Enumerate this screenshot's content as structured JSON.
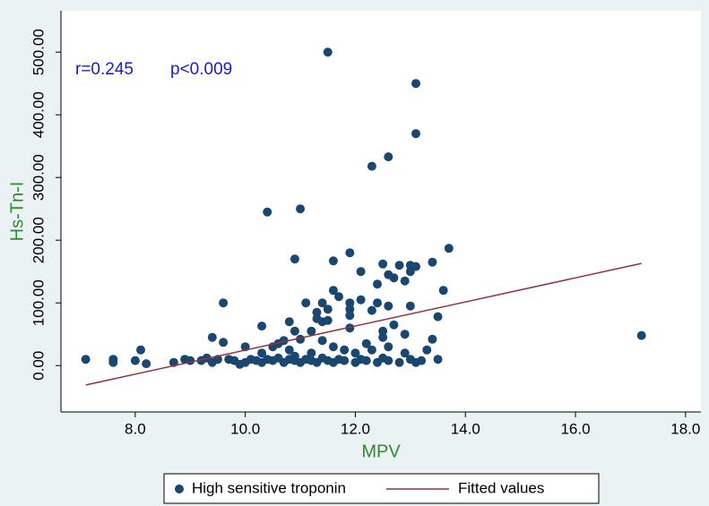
{
  "chart_data": {
    "type": "scatter",
    "annotations": [
      "r=0.245",
      "p<0.009"
    ],
    "x_label": "MPV",
    "y_label": "Hs-Tn-I",
    "xlim": [
      6.65,
      18.28
    ],
    "ylim": [
      -74,
      566
    ],
    "xticks": [
      {
        "value": 8,
        "label": "8.0"
      },
      {
        "value": 10,
        "label": "10.0"
      },
      {
        "value": 12,
        "label": "12.0"
      },
      {
        "value": 14,
        "label": "14.0"
      },
      {
        "value": 16,
        "label": "16.0"
      },
      {
        "value": 18,
        "label": "18.0"
      }
    ],
    "yticks": [
      {
        "value": 0,
        "label": "0.00"
      },
      {
        "value": 100,
        "label": "100.00"
      },
      {
        "value": 200,
        "label": "200.00"
      },
      {
        "value": 300,
        "label": "300.00"
      },
      {
        "value": 400,
        "label": "400.00"
      },
      {
        "value": 500,
        "label": "500.00"
      }
    ],
    "grid": false,
    "legend": "bottom",
    "series": [
      {
        "name": "High sensitive troponin",
        "type": "scatter",
        "color": "#1a476f",
        "x": [
          11.5,
          13.1,
          13.1,
          12.3,
          12.6,
          10.4,
          11.0,
          13.7,
          11.9,
          10.9,
          11.6,
          13.4,
          12.5,
          13.0,
          13.1,
          12.8,
          12.1,
          13.0,
          12.7,
          12.6,
          12.9,
          12.4,
          13.6,
          11.6,
          11.7,
          12.1,
          11.9,
          11.1,
          11.4,
          12.4,
          9.6,
          12.6,
          13.0,
          11.5,
          11.9,
          12.3,
          11.3,
          13.5,
          11.9,
          11.3,
          11.5,
          10.8,
          11.4,
          12.7,
          10.3,
          11.9,
          12.5,
          10.9,
          11.2,
          12.9,
          12.5,
          13.4,
          9.4,
          9.6,
          10.7,
          11.0,
          11.4,
          12.2,
          12.6,
          13.3,
          10.0,
          10.5,
          10.8,
          11.8,
          12.0,
          12.9,
          13.5,
          17.2,
          7.1,
          7.6,
          7.6,
          8.0,
          8.1,
          8.2,
          8.7,
          8.9,
          9.0,
          9.2,
          9.3,
          9.4,
          9.5,
          9.7,
          9.8,
          9.9,
          10.0,
          10.1,
          10.2,
          10.3,
          10.4,
          10.5,
          10.6,
          10.7,
          10.8,
          10.9,
          11.0,
          11.1,
          11.2,
          11.3,
          11.4,
          11.5,
          11.6,
          11.7,
          11.8,
          12.0,
          12.1,
          12.2,
          12.4,
          12.5,
          12.6,
          12.8,
          13.0,
          13.1,
          13.2,
          10.3,
          10.6,
          10.9,
          11.2,
          11.6,
          12.3
        ],
        "values": [
          500,
          450,
          370,
          318,
          333,
          245,
          250,
          187,
          180,
          170,
          167,
          165,
          162,
          160,
          158,
          160,
          150,
          150,
          140,
          145,
          135,
          130,
          120,
          120,
          110,
          105,
          100,
          100,
          100,
          100,
          100,
          95,
          95,
          90,
          90,
          88,
          85,
          78,
          80,
          75,
          72,
          70,
          70,
          65,
          63,
          60,
          55,
          55,
          55,
          50,
          45,
          42,
          45,
          37,
          40,
          42,
          40,
          35,
          30,
          25,
          30,
          30,
          25,
          25,
          20,
          20,
          10,
          48,
          10,
          10,
          5,
          8,
          25,
          3,
          5,
          10,
          8,
          8,
          12,
          5,
          10,
          10,
          8,
          2,
          5,
          10,
          8,
          5,
          10,
          8,
          12,
          5,
          10,
          8,
          5,
          10,
          8,
          5,
          12,
          8,
          5,
          10,
          8,
          5,
          10,
          8,
          5,
          12,
          8,
          5,
          10,
          5,
          8,
          20,
          35,
          15,
          20,
          30,
          25
        ]
      },
      {
        "name": "Fitted values",
        "type": "line",
        "color": "#90353b",
        "x": [
          7.1,
          17.2
        ],
        "values": [
          -31,
          163
        ]
      }
    ]
  }
}
